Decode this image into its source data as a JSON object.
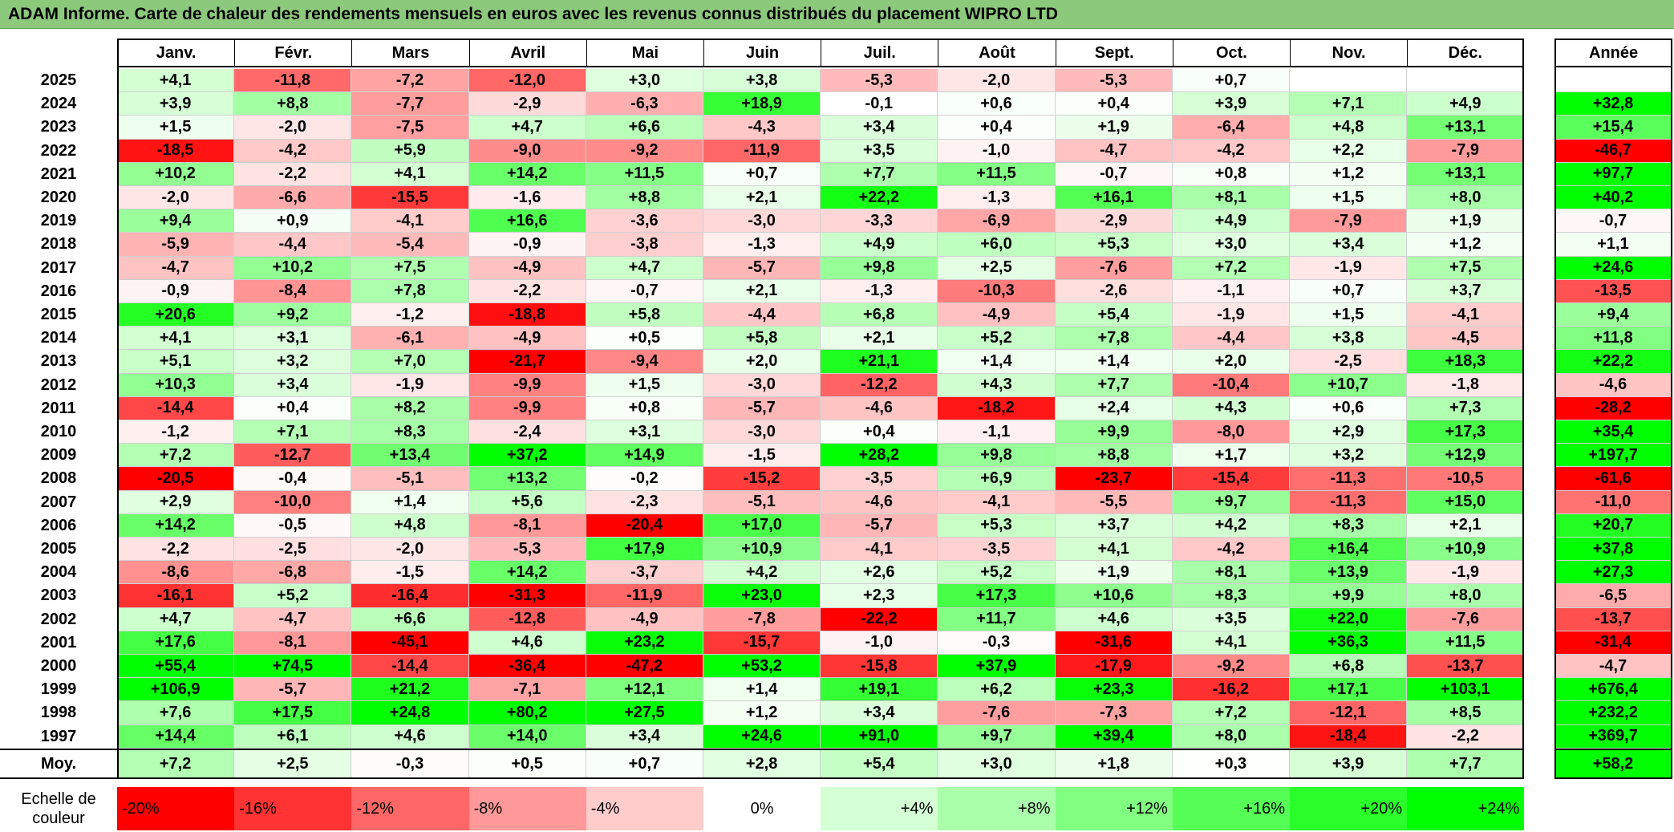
{
  "title": "ADAM Informe. Carte de chaleur des rendements mensuels en euros avec les revenus connus distribués du placement WIPRO LTD",
  "chart_data": {
    "type": "heatmap",
    "columns": [
      "Janv.",
      "Févr.",
      "Mars",
      "Avril",
      "Mai",
      "Juin",
      "Juil.",
      "Août",
      "Sept.",
      "Oct.",
      "Nov.",
      "Déc."
    ],
    "year_column_label": "Année",
    "rows": [
      {
        "year": "2025",
        "months": [
          "+4,1",
          "-11,8",
          "-7,2",
          "-12,0",
          "+3,0",
          "+3,8",
          "-5,3",
          "-2,0",
          "-5,3",
          "+0,7",
          "",
          ""
        ],
        "annual": ""
      },
      {
        "year": "2024",
        "months": [
          "+3,9",
          "+8,8",
          "-7,7",
          "-2,9",
          "-6,3",
          "+18,9",
          "-0,1",
          "+0,6",
          "+0,4",
          "+3,9",
          "+7,1",
          "+4,9"
        ],
        "annual": "+32,8"
      },
      {
        "year": "2023",
        "months": [
          "+1,5",
          "-2,0",
          "-7,5",
          "+4,7",
          "+6,6",
          "-4,3",
          "+3,4",
          "+0,4",
          "+1,9",
          "-6,4",
          "+4,8",
          "+13,1"
        ],
        "annual": "+15,4"
      },
      {
        "year": "2022",
        "months": [
          "-18,5",
          "-4,2",
          "+5,9",
          "-9,0",
          "-9,2",
          "-11,9",
          "+3,5",
          "-1,0",
          "-4,7",
          "-4,2",
          "+2,2",
          "-7,9"
        ],
        "annual": "-46,7"
      },
      {
        "year": "2021",
        "months": [
          "+10,2",
          "-2,2",
          "+4,1",
          "+14,2",
          "+11,5",
          "+0,7",
          "+7,7",
          "+11,5",
          "-0,7",
          "+0,8",
          "+1,2",
          "+13,1"
        ],
        "annual": "+97,7"
      },
      {
        "year": "2020",
        "months": [
          "-2,0",
          "-6,6",
          "-15,5",
          "-1,6",
          "+8,8",
          "+2,1",
          "+22,2",
          "-1,3",
          "+16,1",
          "+8,1",
          "+1,5",
          "+8,0"
        ],
        "annual": "+40,2"
      },
      {
        "year": "2019",
        "months": [
          "+9,4",
          "+0,9",
          "-4,1",
          "+16,6",
          "-3,6",
          "-3,0",
          "-3,3",
          "-6,9",
          "-2,9",
          "+4,9",
          "-7,9",
          "+1,9"
        ],
        "annual": "-0,7"
      },
      {
        "year": "2018",
        "months": [
          "-5,9",
          "-4,4",
          "-5,4",
          "-0,9",
          "-3,8",
          "-1,3",
          "+4,9",
          "+6,0",
          "+5,3",
          "+3,0",
          "+3,4",
          "+1,2"
        ],
        "annual": "+1,1"
      },
      {
        "year": "2017",
        "months": [
          "-4,7",
          "+10,2",
          "+7,5",
          "-4,9",
          "+4,7",
          "-5,7",
          "+9,8",
          "+2,5",
          "-7,6",
          "+7,2",
          "-1,9",
          "+7,5"
        ],
        "annual": "+24,6"
      },
      {
        "year": "2016",
        "months": [
          "-0,9",
          "-8,4",
          "+7,8",
          "-2,2",
          "-0,7",
          "+2,1",
          "-1,3",
          "-10,3",
          "-2,6",
          "-1,1",
          "+0,7",
          "+3,7"
        ],
        "annual": "-13,5"
      },
      {
        "year": "2015",
        "months": [
          "+20,6",
          "+9,2",
          "-1,2",
          "-18,8",
          "+5,8",
          "-4,4",
          "+6,8",
          "-4,9",
          "+5,4",
          "-1,9",
          "+1,5",
          "-4,1"
        ],
        "annual": "+9,4"
      },
      {
        "year": "2014",
        "months": [
          "+4,1",
          "+3,1",
          "-6,1",
          "-4,9",
          "+0,5",
          "+5,8",
          "+2,1",
          "+5,2",
          "+7,8",
          "-4,4",
          "+3,8",
          "-4,5"
        ],
        "annual": "+11,8"
      },
      {
        "year": "2013",
        "months": [
          "+5,1",
          "+3,2",
          "+7,0",
          "-21,7",
          "-9,4",
          "+2,0",
          "+21,1",
          "+1,4",
          "+1,4",
          "+2,0",
          "-2,5",
          "+18,3"
        ],
        "annual": "+22,2"
      },
      {
        "year": "2012",
        "months": [
          "+10,3",
          "+3,4",
          "-1,9",
          "-9,9",
          "+1,5",
          "-3,0",
          "-12,2",
          "+4,3",
          "+7,7",
          "-10,4",
          "+10,7",
          "-1,8"
        ],
        "annual": "-4,6"
      },
      {
        "year": "2011",
        "months": [
          "-14,4",
          "+0,4",
          "+8,2",
          "-9,9",
          "+0,8",
          "-5,7",
          "-4,6",
          "-18,2",
          "+2,4",
          "+4,3",
          "+0,6",
          "+7,3"
        ],
        "annual": "-28,2"
      },
      {
        "year": "2010",
        "months": [
          "-1,2",
          "+7,1",
          "+8,3",
          "-2,4",
          "+3,1",
          "-3,0",
          "+0,4",
          "-1,1",
          "+9,9",
          "-8,0",
          "+2,9",
          "+17,3"
        ],
        "annual": "+35,4"
      },
      {
        "year": "2009",
        "months": [
          "+7,2",
          "-12,7",
          "+13,4",
          "+37,2",
          "+14,9",
          "-1,5",
          "+28,2",
          "+9,8",
          "+8,8",
          "+1,7",
          "+3,2",
          "+12,9"
        ],
        "annual": "+197,7"
      },
      {
        "year": "2008",
        "months": [
          "-20,5",
          "-0,4",
          "-5,1",
          "+13,2",
          "-0,2",
          "-15,2",
          "-3,5",
          "+6,9",
          "-23,7",
          "-15,4",
          "-11,3",
          "-10,5"
        ],
        "annual": "-61,6"
      },
      {
        "year": "2007",
        "months": [
          "+2,9",
          "-10,0",
          "+1,4",
          "+5,6",
          "-2,3",
          "-5,1",
          "-4,6",
          "-4,1",
          "-5,5",
          "+9,7",
          "-11,3",
          "+15,0"
        ],
        "annual": "-11,0"
      },
      {
        "year": "2006",
        "months": [
          "+14,2",
          "-0,5",
          "+4,8",
          "-8,1",
          "-20,4",
          "+17,0",
          "-5,7",
          "+5,3",
          "+3,7",
          "+4,2",
          "+8,3",
          "+2,1"
        ],
        "annual": "+20,7"
      },
      {
        "year": "2005",
        "months": [
          "-2,2",
          "-2,5",
          "-2,0",
          "-5,3",
          "+17,9",
          "+10,9",
          "-4,1",
          "-3,5",
          "+4,1",
          "-4,2",
          "+16,4",
          "+10,9"
        ],
        "annual": "+37,8"
      },
      {
        "year": "2004",
        "months": [
          "-8,6",
          "-6,8",
          "-1,5",
          "+14,2",
          "-3,7",
          "+4,2",
          "+2,6",
          "+5,2",
          "+1,9",
          "+8,1",
          "+13,9",
          "-1,9"
        ],
        "annual": "+27,3"
      },
      {
        "year": "2003",
        "months": [
          "-16,1",
          "+5,2",
          "-16,4",
          "-31,3",
          "-11,9",
          "+23,0",
          "+2,3",
          "+17,3",
          "+10,6",
          "+8,3",
          "+9,9",
          "+8,0"
        ],
        "annual": "-6,5"
      },
      {
        "year": "2002",
        "months": [
          "+4,7",
          "-4,7",
          "+6,6",
          "-12,8",
          "-4,9",
          "-7,8",
          "-22,2",
          "+11,7",
          "+4,6",
          "+3,5",
          "+22,0",
          "-7,6"
        ],
        "annual": "-13,7"
      },
      {
        "year": "2001",
        "months": [
          "+17,6",
          "-8,1",
          "-45,1",
          "+4,6",
          "+23,2",
          "-15,7",
          "-1,0",
          "-0,3",
          "-31,6",
          "+4,1",
          "+36,3",
          "+11,5"
        ],
        "annual": "-31,4"
      },
      {
        "year": "2000",
        "months": [
          "+55,4",
          "+74,5",
          "-14,4",
          "-36,4",
          "-47,2",
          "+53,2",
          "-15,8",
          "+37,9",
          "-17,9",
          "-9,2",
          "+6,8",
          "-13,7"
        ],
        "annual": "-4,7"
      },
      {
        "year": "1999",
        "months": [
          "+106,9",
          "-5,7",
          "+21,2",
          "-7,1",
          "+12,1",
          "+1,4",
          "+19,1",
          "+6,2",
          "+23,3",
          "-16,2",
          "+17,1",
          "+103,1"
        ],
        "annual": "+676,4"
      },
      {
        "year": "1998",
        "months": [
          "+7,6",
          "+17,5",
          "+24,8",
          "+80,2",
          "+27,5",
          "+1,2",
          "+3,4",
          "-7,6",
          "-7,3",
          "+7,2",
          "-12,1",
          "+8,5"
        ],
        "annual": "+232,2"
      },
      {
        "year": "1997",
        "months": [
          "+14,4",
          "+6,1",
          "+4,6",
          "+14,0",
          "+3,4",
          "+24,6",
          "+91,0",
          "+9,7",
          "+39,4",
          "+8,0",
          "-18,4",
          "-2,2"
        ],
        "annual": "+369,7"
      }
    ],
    "average": {
      "label": "Moy.",
      "months": [
        "+7,2",
        "+2,5",
        "-0,3",
        "+0,5",
        "+0,7",
        "+2,8",
        "+5,4",
        "+3,0",
        "+1,8",
        "+0,3",
        "+3,9",
        "+7,7"
      ],
      "annual": "+58,2"
    },
    "legend": {
      "label_line1": "Echelle de",
      "label_line2": "couleur",
      "items": [
        {
          "text": "-20%",
          "value": -20
        },
        {
          "text": "-16%",
          "value": -16
        },
        {
          "text": "-12%",
          "value": -12
        },
        {
          "text": "-8%",
          "value": -8
        },
        {
          "text": "-4%",
          "value": -4
        },
        {
          "text": "0%",
          "value": 0
        },
        {
          "text": "+4%",
          "value": 4
        },
        {
          "text": "+8%",
          "value": 8
        },
        {
          "text": "+12%",
          "value": 12
        },
        {
          "text": "+16%",
          "value": 16
        },
        {
          "text": "+20%",
          "value": 20
        },
        {
          "text": "+24%",
          "value": 24
        }
      ]
    },
    "colors": {
      "negative_max": "#ff0000",
      "neutral": "#ffffff",
      "positive_max": "#00ff00",
      "title_bar": "#8cc97d"
    },
    "scale_range": [
      -20,
      24
    ]
  }
}
